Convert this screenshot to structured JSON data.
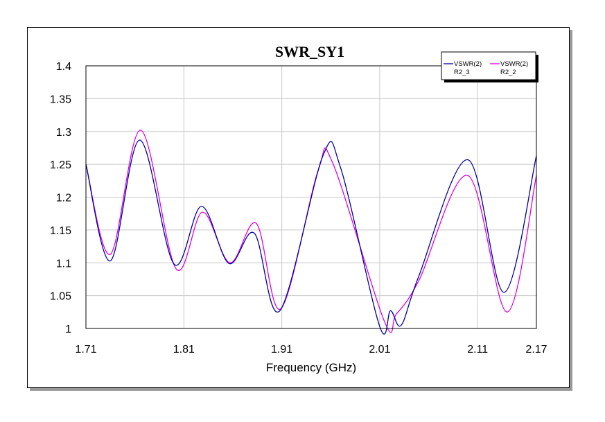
{
  "chart_data": {
    "type": "line",
    "title": "SWR_SY1",
    "xlabel": "Frequency (GHz)",
    "ylabel": "",
    "xlim": [
      1.71,
      2.17
    ],
    "ylim": [
      1.0,
      1.4
    ],
    "xticks": [
      1.71,
      1.81,
      1.91,
      2.01,
      2.11,
      2.17
    ],
    "xtick_labels": [
      "1.71",
      "1.81",
      "1.91",
      "2.01",
      "2.11",
      "2.17"
    ],
    "yticks": [
      1.0,
      1.05,
      1.1,
      1.15,
      1.2,
      1.25,
      1.3,
      1.35,
      1.4
    ],
    "ytick_labels": [
      "1",
      "1.05",
      "1.1",
      "1.15",
      "1.2",
      "1.25",
      "1.3",
      "1.35",
      "1.4"
    ],
    "grid": true,
    "legend_position": "top-right",
    "series": [
      {
        "name": "VSWR(2)",
        "subname": "R2_3",
        "color": "#0000a0",
        "x": [
          1.71,
          1.735,
          1.765,
          1.8,
          1.828,
          1.856,
          1.882,
          1.908,
          1.952,
          1.97,
          2.01,
          2.021,
          2.032,
          2.05,
          2.1,
          2.137,
          2.17
        ],
        "y": [
          1.25,
          1.103,
          1.287,
          1.098,
          1.186,
          1.099,
          1.145,
          1.027,
          1.263,
          1.245,
          1.003,
          1.027,
          1.005,
          1.08,
          1.257,
          1.055,
          1.263
        ]
      },
      {
        "name": "VSWR(2)",
        "subname": "R2_2",
        "color": "#e000e0",
        "x": [
          1.71,
          1.735,
          1.766,
          1.802,
          1.829,
          1.857,
          1.884,
          1.909,
          1.947,
          1.962,
          2.015,
          2.027,
          2.05,
          2.1,
          2.14,
          2.17
        ],
        "y": [
          1.25,
          1.113,
          1.302,
          1.091,
          1.177,
          1.1,
          1.16,
          1.03,
          1.24,
          1.252,
          1.01,
          1.022,
          1.073,
          1.233,
          1.025,
          1.233
        ]
      }
    ]
  }
}
